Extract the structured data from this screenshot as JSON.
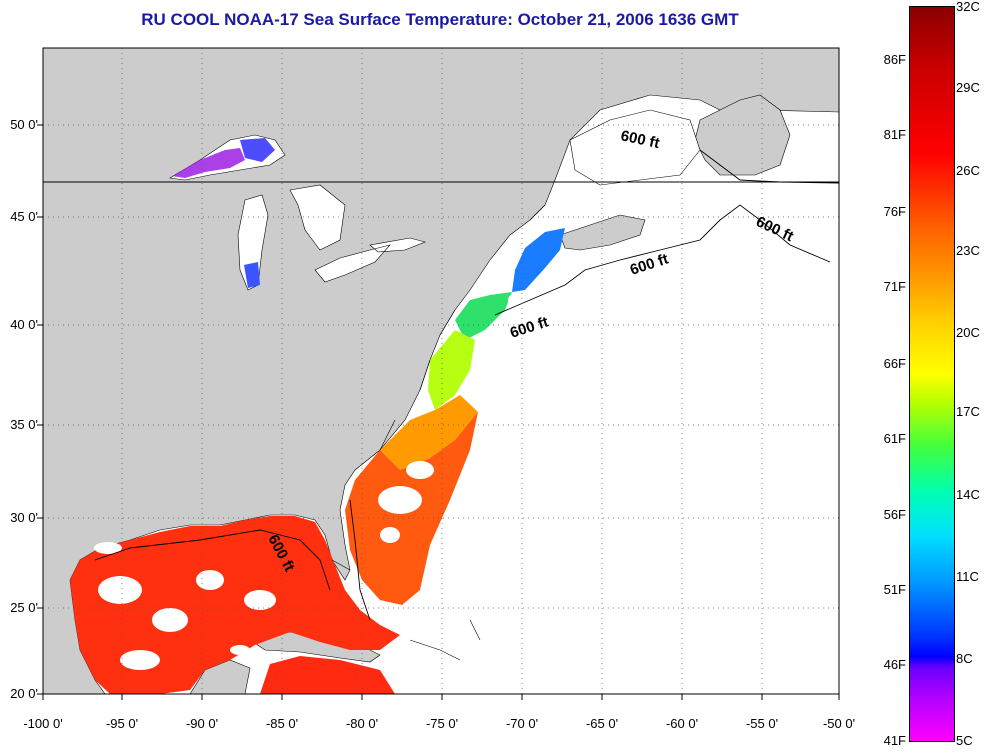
{
  "title": "RU COOL  NOAA-17  Sea Surface Temperature:  October 21, 2006 1636 GMT",
  "latitude_labels": [
    "50 0'",
    "45 0'",
    "40 0'",
    "35 0'",
    "30 0'",
    "25 0'",
    "20 0'"
  ],
  "longitude_labels": [
    "-100 0'",
    "-95 0'",
    "-90 0'",
    "-85 0'",
    "-80 0'",
    "-75 0'",
    "-70 0'",
    "-65 0'",
    "-60 0'",
    "-55 0'",
    "-50 0'"
  ],
  "isobath_labels": [
    "600 ft",
    "600 ft",
    "600 ft",
    "600 ft",
    "600 ft"
  ],
  "colorbar": {
    "fahrenheit_labels": [
      "86F",
      "81F",
      "76F",
      "71F",
      "66F",
      "61F",
      "56F",
      "51F",
      "46F",
      "41F"
    ],
    "celsius_labels": [
      "32C",
      "29C",
      "26C",
      "23C",
      "20C",
      "17C",
      "14C",
      "11C",
      "8C",
      "5C"
    ]
  },
  "colors": {
    "title": "#1a1aa6",
    "land": "#cccccc",
    "ocean_no_data": "#ffffff"
  }
}
